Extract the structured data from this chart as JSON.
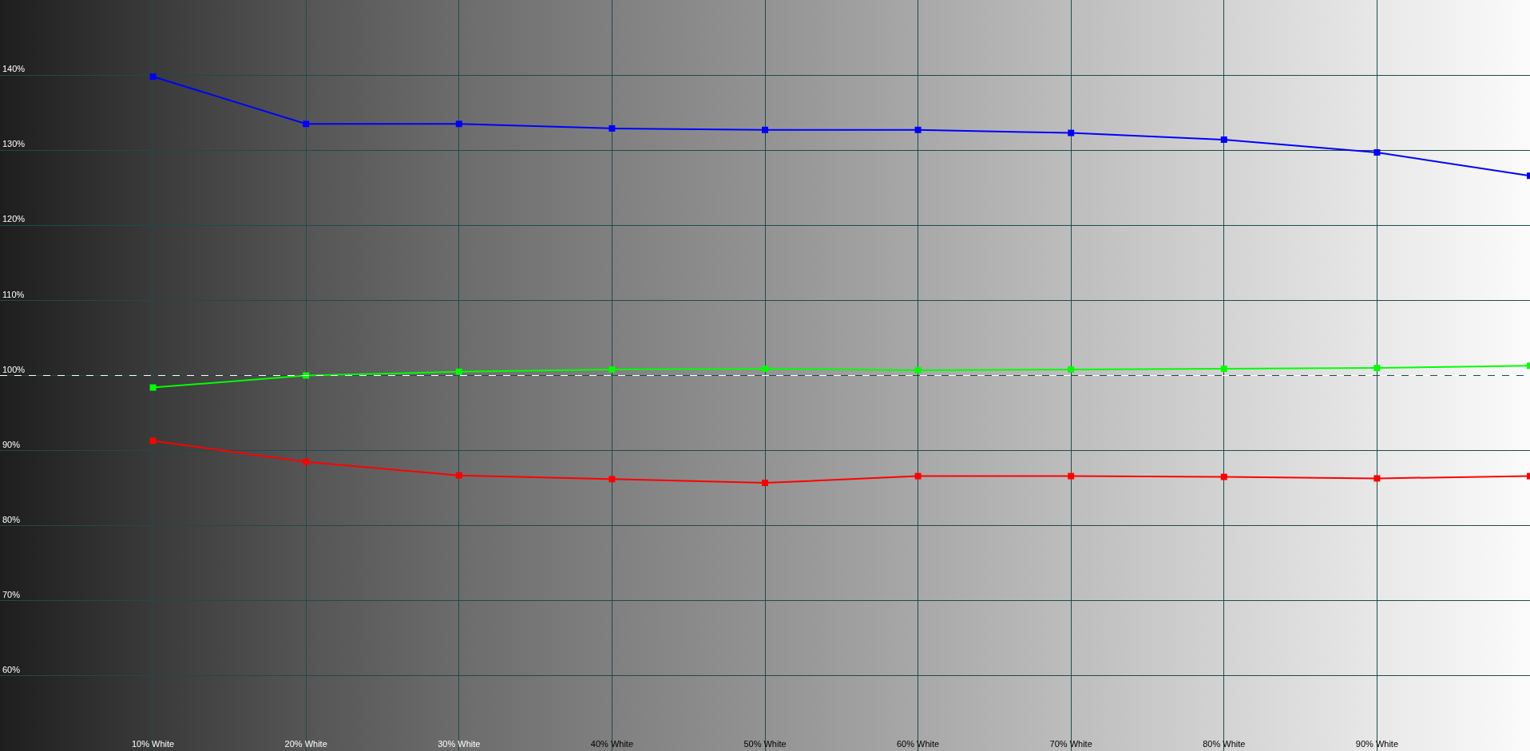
{
  "chart_data": {
    "type": "line",
    "x": [
      10,
      20,
      30,
      40,
      50,
      60,
      70,
      80,
      90,
      100
    ],
    "series": [
      {
        "color": "#0000ff",
        "values": [
          139.8,
          133.5,
          133.5,
          132.9,
          132.7,
          132.7,
          132.3,
          131.4,
          129.7,
          126.6
        ]
      },
      {
        "color": "#00ff00",
        "values": [
          98.4,
          100,
          100.5,
          100.8,
          100.9,
          100.7,
          100.8,
          100.9,
          101,
          101.3
        ]
      },
      {
        "color": "#ff0000",
        "values": [
          91.3,
          88.5,
          86.7,
          86.2,
          85.7,
          86.6,
          86.6,
          86.5,
          86.3,
          86.6
        ]
      }
    ],
    "xlim": [
      0,
      100
    ],
    "xticks": [
      {
        "value": 10,
        "label": "10% White"
      },
      {
        "value": 20,
        "label": "20% White"
      },
      {
        "value": 30,
        "label": "30% White"
      },
      {
        "value": 40,
        "label": "40% White"
      },
      {
        "value": 50,
        "label": "50% White"
      },
      {
        "value": 60,
        "label": "60% White"
      },
      {
        "value": 70,
        "label": "70% White"
      },
      {
        "value": 80,
        "label": "80% White"
      },
      {
        "value": 90,
        "label": "90% White"
      }
    ],
    "ylim": [
      50,
      150
    ],
    "yticks": [
      {
        "value": 60,
        "label": "60%"
      },
      {
        "value": 70,
        "label": "70%"
      },
      {
        "value": 80,
        "label": "80%"
      },
      {
        "value": 90,
        "label": "90%"
      },
      {
        "value": 100,
        "label": "100%"
      },
      {
        "value": 110,
        "label": "110%"
      },
      {
        "value": 120,
        "label": "120%"
      },
      {
        "value": 130,
        "label": "130%"
      },
      {
        "value": 140,
        "label": "140%"
      }
    ],
    "ref_lines": [
      {
        "axis": "y",
        "value": 100,
        "color": "#ffffff",
        "line_style": "dashed"
      }
    ],
    "grid": true,
    "marker": "square",
    "line_style": "solid"
  }
}
